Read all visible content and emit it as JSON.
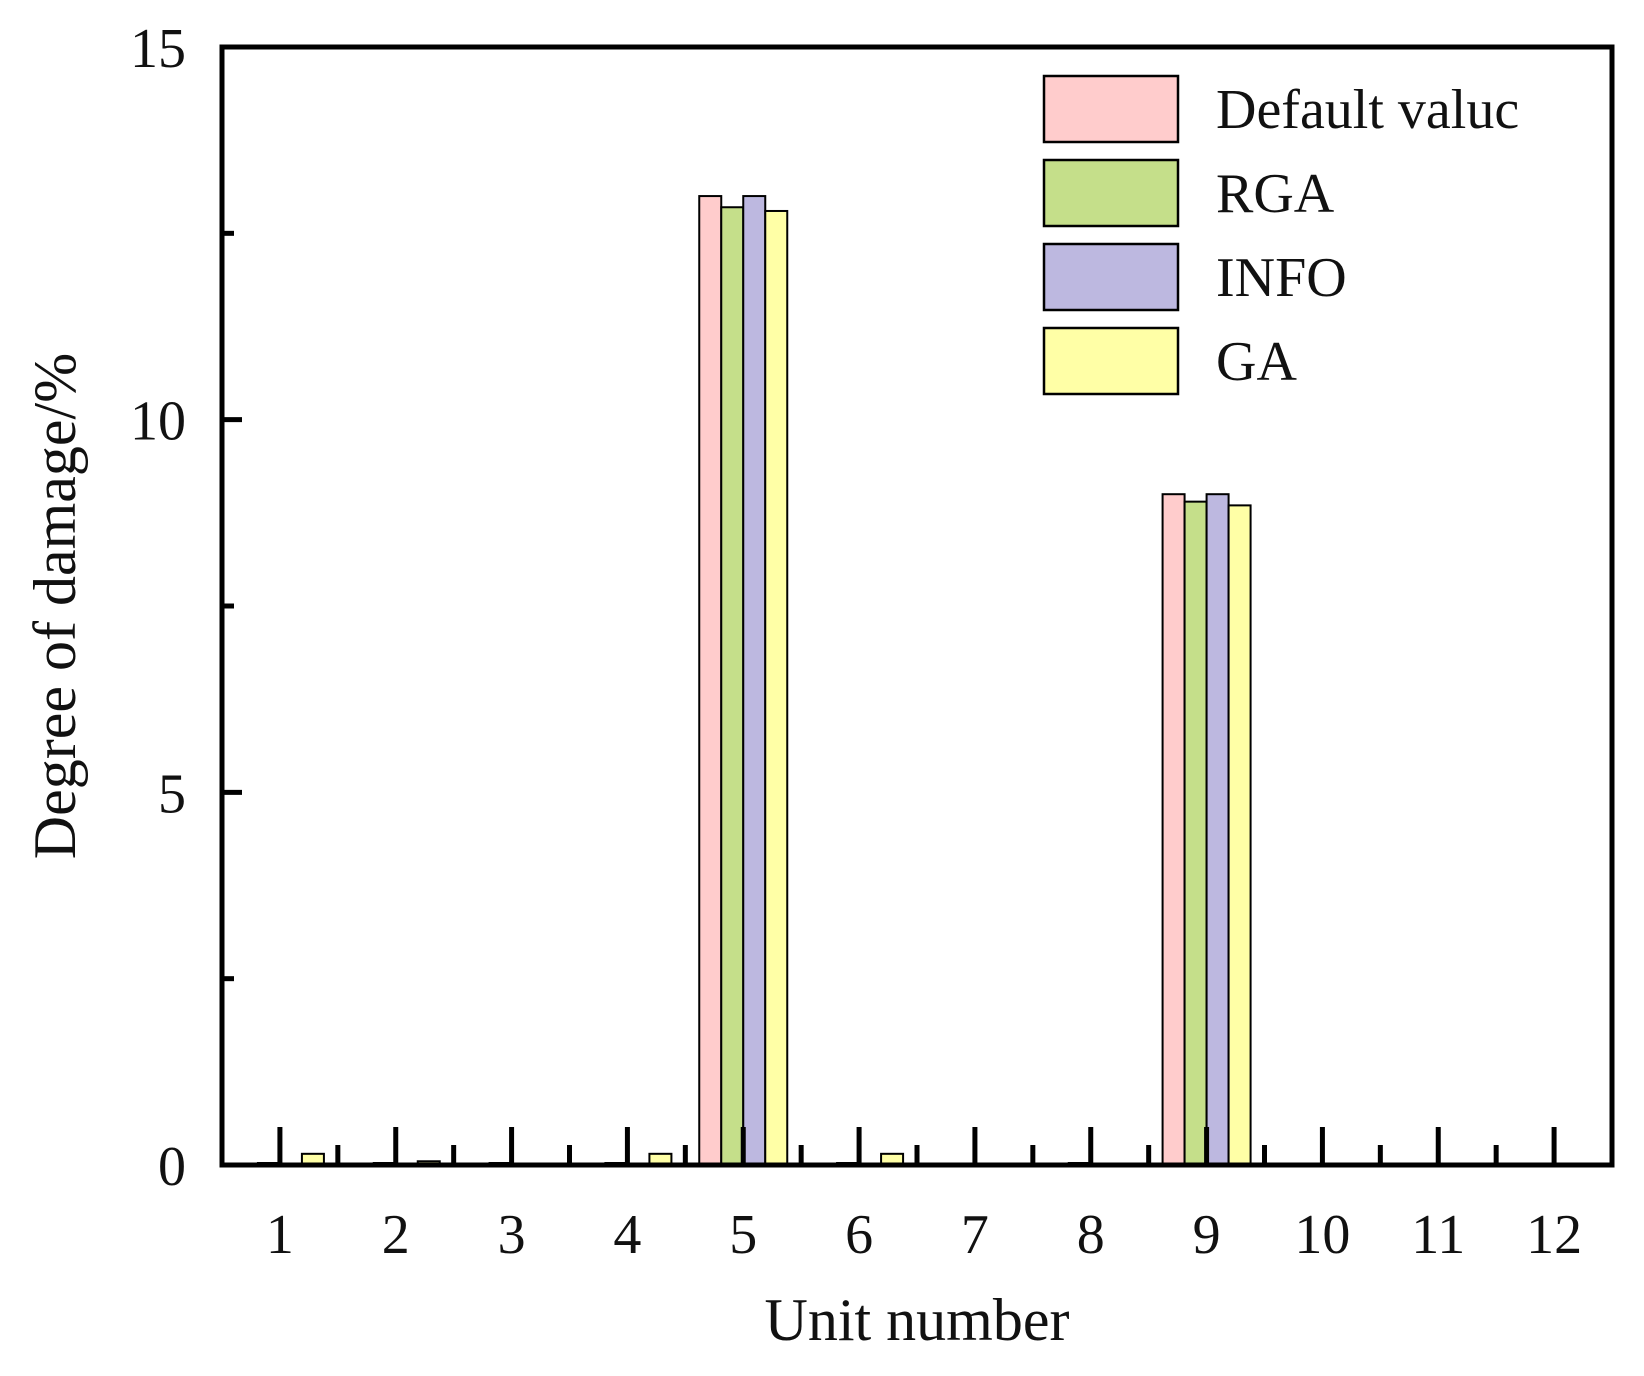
{
  "chart_data": {
    "type": "bar",
    "title": "",
    "xlabel": "Unit number",
    "ylabel": "Degree of damage/%",
    "categories": [
      "1",
      "2",
      "3",
      "4",
      "5",
      "6",
      "7",
      "8",
      "9",
      "10",
      "11",
      "12"
    ],
    "ylim": [
      0,
      15
    ],
    "yticks": [
      0,
      5,
      10,
      15
    ],
    "y_minor_ticks": [
      2.5,
      7.5,
      12.5
    ],
    "grid": false,
    "legend_position": "top-right",
    "series": [
      {
        "name": "Default valuc",
        "color": "#FFCCCC",
        "values": [
          0,
          0,
          0,
          0,
          13.0,
          0,
          0,
          0,
          9.0,
          0,
          0,
          0
        ]
      },
      {
        "name": "RGA",
        "color": "#C5DF8A",
        "values": [
          0.02,
          0.02,
          0.02,
          0.02,
          12.85,
          0.02,
          0,
          0.02,
          8.9,
          0,
          0,
          0
        ]
      },
      {
        "name": "INFO",
        "color": "#BDB8E0",
        "values": [
          0,
          0,
          0,
          0,
          13.0,
          0,
          0,
          0,
          9.0,
          0,
          0,
          0
        ]
      },
      {
        "name": "GA",
        "color": "#FFFFA6",
        "values": [
          0.15,
          0.05,
          0,
          0.15,
          12.8,
          0.15,
          0,
          0,
          8.85,
          0,
          0,
          0
        ]
      }
    ]
  }
}
